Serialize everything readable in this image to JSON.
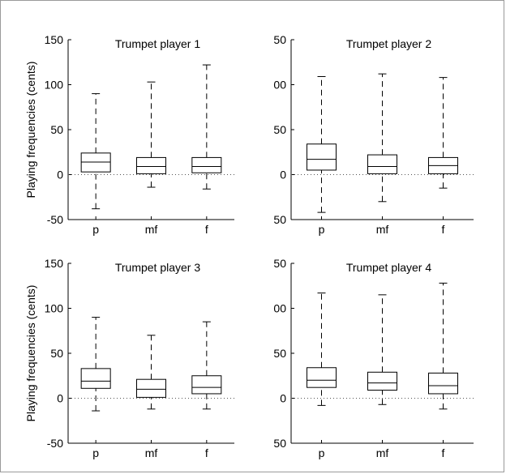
{
  "chart_data": [
    {
      "type": "box",
      "title": "Trumpet player 1",
      "ylabel": "Playing frequencies (cents)",
      "categories": [
        "p",
        "mf",
        "f"
      ],
      "ylim": [
        -50,
        150
      ],
      "yticks": [
        "-50",
        "0",
        "50",
        "100",
        "150"
      ],
      "zero_line": true,
      "boxes": [
        {
          "min": -38,
          "q1": 3,
          "median": 14,
          "q3": 24,
          "max": 90
        },
        {
          "min": -14,
          "q1": 1,
          "median": 9,
          "q3": 19,
          "max": 103
        },
        {
          "min": -16,
          "q1": 2,
          "median": 9,
          "q3": 19,
          "max": 122
        }
      ]
    },
    {
      "type": "box",
      "title": "Trumpet player 2",
      "ylabel": "",
      "categories": [
        "p",
        "mf",
        "f"
      ],
      "ylim": [
        -50,
        150
      ],
      "yticks": [
        "50",
        "0",
        "50",
        "00",
        "50"
      ],
      "zero_line": true,
      "boxes": [
        {
          "min": -42,
          "q1": 5,
          "median": 17,
          "q3": 34,
          "max": 109
        },
        {
          "min": -30,
          "q1": 1,
          "median": 9,
          "q3": 22,
          "max": 112
        },
        {
          "min": -15,
          "q1": 1,
          "median": 10,
          "q3": 19,
          "max": 108
        }
      ]
    },
    {
      "type": "box",
      "title": "Trumpet player 3",
      "ylabel": "Playing frequencies (cents)",
      "categories": [
        "p",
        "mf",
        "f"
      ],
      "ylim": [
        -50,
        150
      ],
      "yticks": [
        "-50",
        "0",
        "50",
        "100",
        "150"
      ],
      "zero_line": true,
      "boxes": [
        {
          "min": -14,
          "q1": 11,
          "median": 19,
          "q3": 33,
          "max": 90
        },
        {
          "min": -12,
          "q1": 1,
          "median": 10,
          "q3": 21,
          "max": 70
        },
        {
          "min": -12,
          "q1": 5,
          "median": 12,
          "q3": 25,
          "max": 85
        }
      ]
    },
    {
      "type": "box",
      "title": "Trumpet player 4",
      "ylabel": "",
      "categories": [
        "p",
        "mf",
        "f"
      ],
      "ylim": [
        -50,
        150
      ],
      "yticks": [
        "50",
        "0",
        "50",
        "00",
        "50"
      ],
      "zero_line": true,
      "boxes": [
        {
          "min": -8,
          "q1": 12,
          "median": 20,
          "q3": 34,
          "max": 117
        },
        {
          "min": -7,
          "q1": 9,
          "median": 17,
          "q3": 29,
          "max": 115
        },
        {
          "min": -12,
          "q1": 5,
          "median": 14,
          "q3": 28,
          "max": 128
        }
      ]
    }
  ]
}
